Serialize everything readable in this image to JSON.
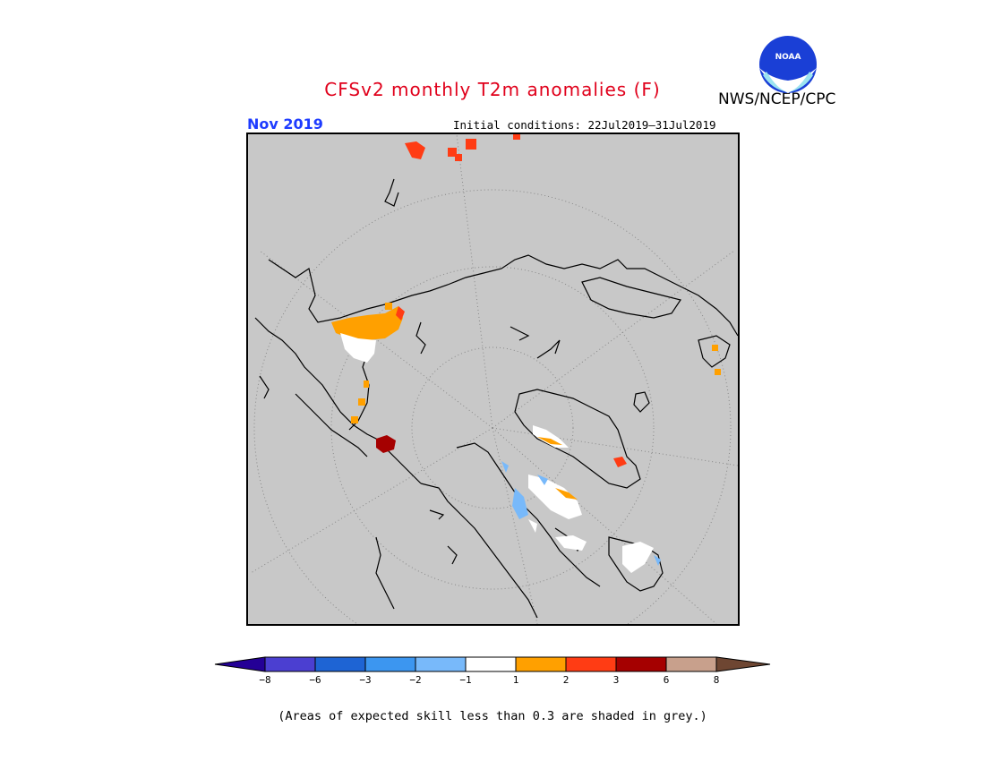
{
  "header": {
    "title": "CFSv2 monthly T2m anomalies (F)",
    "organization": "NWS/NCEP/CPC",
    "month_label": "Nov 2019",
    "initial_conditions": "Initial conditions: 22Jul2019–31Jul2019"
  },
  "logo": {
    "text": "NOAA"
  },
  "legend": {
    "colors": [
      "#240096",
      "#4b3fd1",
      "#1e64d4",
      "#3c96f0",
      "#78b9fa",
      "#ffffff",
      "#ffa000",
      "#ff3c14",
      "#a50000",
      "#c8a08c",
      "#6e4632"
    ],
    "labels": [
      "−8",
      "−6",
      "−3",
      "−2",
      "−1",
      "1",
      "2",
      "3",
      "6",
      "8"
    ]
  },
  "map": {
    "background_color": "#c8c8c8",
    "projection": "north-polar-stereographic",
    "regions": [
      {
        "name": "siberia-orange",
        "color": "#ffa000"
      },
      {
        "name": "caspian-red",
        "color": "#ff3c14"
      },
      {
        "name": "caspian-darkred",
        "color": "#a50000"
      },
      {
        "name": "canada-blue",
        "color": "#78b9fa"
      },
      {
        "name": "canada-white",
        "color": "#ffffff"
      }
    ]
  },
  "footnote": "(Areas of expected skill less than 0.3 are shaded in grey.)"
}
